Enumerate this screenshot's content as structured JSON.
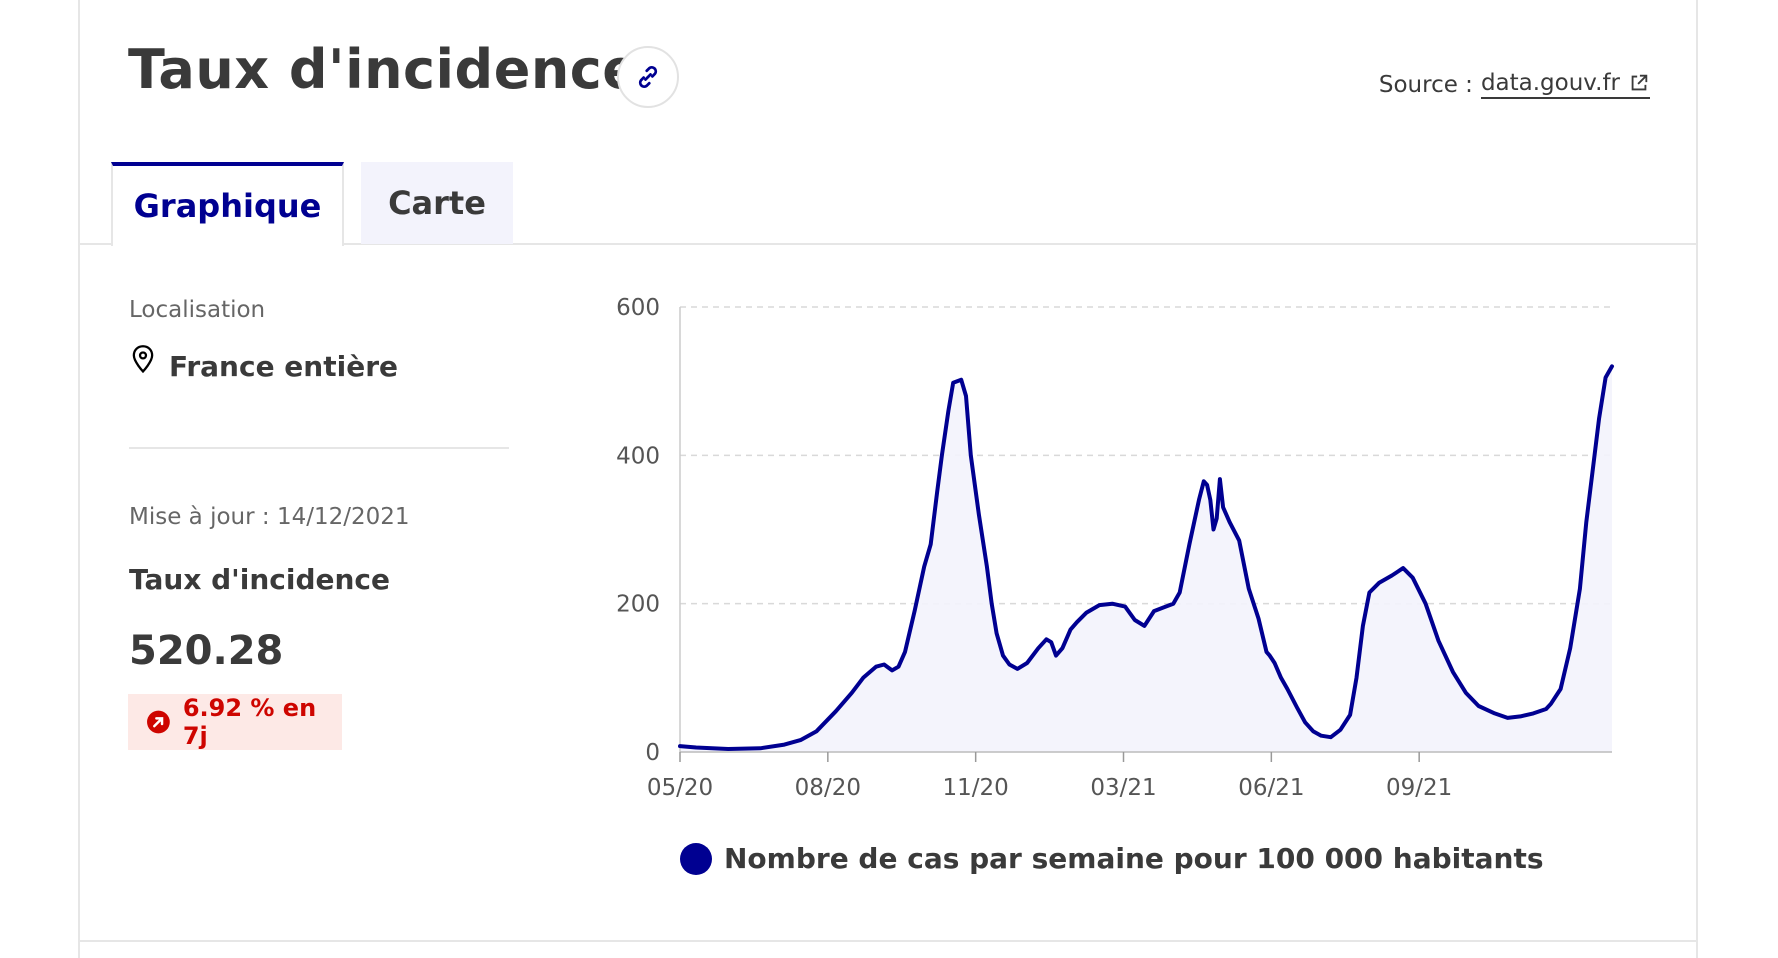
{
  "header": {
    "title": "Taux d'incidence",
    "source_label": "Source :",
    "source_link": "data.gouv.fr"
  },
  "tabs": [
    {
      "label": "Graphique",
      "active": true
    },
    {
      "label": "Carte",
      "active": false
    }
  ],
  "sidebar": {
    "location_label": "Localisation",
    "location_value": "France entière",
    "update_label": "Mise à jour : 14/12/2021",
    "indicator_label": "Taux d'incidence",
    "indicator_value": "520.28",
    "change_badge": "6.92 % en 7j"
  },
  "colors": {
    "accent": "#000091",
    "badge_bg": "#fde9e6",
    "badge_text": "#ce0500",
    "area_fill": "#f3f3fc"
  },
  "chart_data": {
    "type": "area",
    "title": "",
    "xlabel": "",
    "ylabel": "",
    "ylim": [
      0,
      600
    ],
    "yticks": [
      0,
      200,
      400,
      600
    ],
    "xlim": [
      "2020-05-13",
      "2021-12-14"
    ],
    "xticks": [
      {
        "date": "2020-05-13",
        "label": "05/20"
      },
      {
        "date": "2020-08-13",
        "label": "08/20"
      },
      {
        "date": "2020-11-13",
        "label": "11/20"
      },
      {
        "date": "2021-02-13",
        "label": "03/21"
      },
      {
        "date": "2021-05-16",
        "label": "06/21"
      },
      {
        "date": "2021-08-16",
        "label": "09/21"
      }
    ],
    "grid": true,
    "legend_position": "bottom",
    "series": [
      {
        "name": "Nombre de cas par semaine pour 100 000 habitants",
        "color": "#000091",
        "points": [
          [
            "2020-05-13",
            8
          ],
          [
            "2020-05-23",
            6
          ],
          [
            "2020-06-12",
            4
          ],
          [
            "2020-07-02",
            5
          ],
          [
            "2020-07-17",
            10
          ],
          [
            "2020-07-27",
            16
          ],
          [
            "2020-08-06",
            28
          ],
          [
            "2020-08-18",
            55
          ],
          [
            "2020-08-28",
            80
          ],
          [
            "2020-09-04",
            100
          ],
          [
            "2020-09-12",
            115
          ],
          [
            "2020-09-17",
            118
          ],
          [
            "2020-09-22",
            110
          ],
          [
            "2020-09-26",
            115
          ],
          [
            "2020-09-30",
            135
          ],
          [
            "2020-10-06",
            190
          ],
          [
            "2020-10-12",
            250
          ],
          [
            "2020-10-16",
            280
          ],
          [
            "2020-10-20",
            350
          ],
          [
            "2020-10-23",
            400
          ],
          [
            "2020-10-27",
            460
          ],
          [
            "2020-10-30",
            498
          ],
          [
            "2020-11-04",
            502
          ],
          [
            "2020-11-07",
            480
          ],
          [
            "2020-11-10",
            400
          ],
          [
            "2020-11-15",
            320
          ],
          [
            "2020-11-20",
            250
          ],
          [
            "2020-11-23",
            200
          ],
          [
            "2020-11-26",
            160
          ],
          [
            "2020-11-30",
            130
          ],
          [
            "2020-12-04",
            118
          ],
          [
            "2020-12-09",
            112
          ],
          [
            "2020-12-15",
            120
          ],
          [
            "2020-12-22",
            140
          ],
          [
            "2020-12-27",
            152
          ],
          [
            "2020-12-30",
            148
          ],
          [
            "2021-01-02",
            130
          ],
          [
            "2021-01-06",
            140
          ],
          [
            "2021-01-11",
            165
          ],
          [
            "2021-01-15",
            175
          ],
          [
            "2021-01-21",
            188
          ],
          [
            "2021-01-29",
            198
          ],
          [
            "2021-02-06",
            200
          ],
          [
            "2021-02-14",
            196
          ],
          [
            "2021-02-20",
            178
          ],
          [
            "2021-02-26",
            170
          ],
          [
            "2021-03-04",
            190
          ],
          [
            "2021-03-10",
            195
          ],
          [
            "2021-03-16",
            200
          ],
          [
            "2021-03-20",
            215
          ],
          [
            "2021-03-26",
            280
          ],
          [
            "2021-04-01",
            340
          ],
          [
            "2021-04-04",
            365
          ],
          [
            "2021-04-06",
            360
          ],
          [
            "2021-04-08",
            340
          ],
          [
            "2021-04-10",
            300
          ],
          [
            "2021-04-12",
            315
          ],
          [
            "2021-04-14",
            368
          ],
          [
            "2021-04-16",
            330
          ],
          [
            "2021-04-20",
            310
          ],
          [
            "2021-04-26",
            285
          ],
          [
            "2021-05-02",
            220
          ],
          [
            "2021-05-08",
            180
          ],
          [
            "2021-05-13",
            135
          ],
          [
            "2021-05-15",
            130
          ],
          [
            "2021-05-18",
            120
          ],
          [
            "2021-05-22",
            100
          ],
          [
            "2021-05-26",
            85
          ],
          [
            "2021-06-01",
            60
          ],
          [
            "2021-06-06",
            40
          ],
          [
            "2021-06-11",
            28
          ],
          [
            "2021-06-16",
            22
          ],
          [
            "2021-06-22",
            20
          ],
          [
            "2021-06-28",
            30
          ],
          [
            "2021-07-04",
            50
          ],
          [
            "2021-07-08",
            100
          ],
          [
            "2021-07-12",
            170
          ],
          [
            "2021-07-16",
            215
          ],
          [
            "2021-07-22",
            228
          ],
          [
            "2021-07-30",
            238
          ],
          [
            "2021-08-06",
            248
          ],
          [
            "2021-08-12",
            235
          ],
          [
            "2021-08-20",
            200
          ],
          [
            "2021-08-28",
            150
          ],
          [
            "2021-09-06",
            108
          ],
          [
            "2021-09-14",
            80
          ],
          [
            "2021-09-22",
            62
          ],
          [
            "2021-10-02",
            52
          ],
          [
            "2021-10-10",
            46
          ],
          [
            "2021-10-18",
            48
          ],
          [
            "2021-10-26",
            52
          ],
          [
            "2021-11-03",
            58
          ],
          [
            "2021-11-06",
            65
          ],
          [
            "2021-11-12",
            85
          ],
          [
            "2021-11-18",
            140
          ],
          [
            "2021-11-24",
            220
          ],
          [
            "2021-11-28",
            310
          ],
          [
            "2021-12-02",
            380
          ],
          [
            "2021-12-06",
            450
          ],
          [
            "2021-12-10",
            505
          ],
          [
            "2021-12-14",
            520
          ]
        ]
      }
    ]
  }
}
